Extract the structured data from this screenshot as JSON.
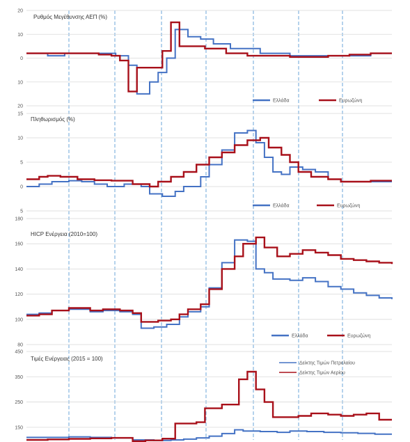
{
  "colors": {
    "greece": "#4472c4",
    "eurozone": "#a8101a",
    "grid": "#d9d9d9",
    "divider": "#5b9bd5"
  },
  "chart_data": [
    {
      "type": "line",
      "title": "Ρυθμός Μεγέθυνσης ΑΕΠ (%)",
      "ylim": [
        -20,
        20
      ],
      "y_ticks": [
        20,
        10,
        0,
        -10,
        -20
      ],
      "y_tick_labels": [
        "20",
        "10",
        "0",
        "10",
        "20"
      ],
      "grid": true,
      "legend": "bottom-right",
      "series": [
        {
          "name": "Ελλάδα",
          "color": "#4472c4",
          "step": true,
          "x": [
            0,
            5,
            9,
            15,
            21,
            24,
            26,
            29,
            31,
            33,
            35,
            38,
            41,
            44,
            48,
            55,
            62,
            67,
            71,
            76,
            81,
            86
          ],
          "values": [
            2,
            1,
            2,
            2,
            1,
            -3,
            -15,
            -10,
            -6,
            0,
            12,
            9,
            8,
            6,
            4,
            2,
            1,
            1,
            1,
            1,
            2,
            2
          ]
        },
        {
          "name": "Ευρωζώνη",
          "color": "#a8101a",
          "step": true,
          "x": [
            0,
            5,
            10,
            17,
            20,
            22,
            24,
            26,
            29,
            32,
            34,
            36,
            39,
            42,
            47,
            52,
            57,
            62,
            67,
            71,
            76,
            81,
            86
          ],
          "values": [
            2,
            2,
            2,
            1.5,
            1,
            -1,
            -14,
            -4,
            -4,
            3,
            15,
            5,
            5,
            4,
            2,
            1,
            1,
            0.5,
            0.5,
            1,
            1.5,
            2,
            2
          ]
        }
      ]
    },
    {
      "type": "line",
      "title": "Πληθωρισμός  (%)",
      "ylim": [
        -5,
        15
      ],
      "y_ticks": [
        15,
        10,
        5,
        0,
        -5
      ],
      "y_tick_labels": [
        "15",
        "10",
        "5",
        "0",
        "5"
      ],
      "grid": true,
      "legend": "bottom-right",
      "series": [
        {
          "name": "Ελλάδα",
          "color": "#4472c4",
          "step": true,
          "x": [
            0,
            3,
            6,
            10,
            13,
            16,
            19,
            23,
            27,
            29,
            32,
            35,
            37,
            41,
            43,
            46,
            49,
            52,
            54,
            56,
            58,
            60,
            62,
            65,
            68,
            71,
            74,
            77,
            81,
            86
          ],
          "values": [
            0,
            0.5,
            1,
            1.2,
            1,
            0.5,
            0,
            0.5,
            0,
            -1.5,
            -2,
            -1,
            0,
            2,
            4.5,
            7.5,
            11,
            11.5,
            9,
            6,
            3,
            2.5,
            4,
            3.5,
            3,
            1.5,
            1,
            1,
            1,
            1
          ]
        },
        {
          "name": "Ευρωζώνη",
          "color": "#a8101a",
          "step": true,
          "x": [
            0,
            3,
            5,
            8,
            12,
            16,
            20,
            25,
            29,
            31,
            34,
            37,
            40,
            43,
            46,
            49,
            52,
            55,
            57,
            60,
            62,
            64,
            67,
            71,
            74,
            77,
            81,
            86
          ],
          "values": [
            1.5,
            2,
            2.2,
            2,
            1.5,
            1.3,
            1.2,
            0.5,
            0,
            1,
            2,
            3,
            4.5,
            6,
            7,
            8.5,
            9.5,
            10,
            8,
            6.5,
            5,
            3,
            2,
            1.5,
            1,
            1,
            1.2,
            1.2
          ]
        }
      ]
    },
    {
      "type": "line",
      "title": "HICP Ενέργεια  (2010=100)",
      "ylim": [
        80,
        180
      ],
      "y_ticks": [
        180,
        160,
        140,
        120,
        100,
        80
      ],
      "y_tick_labels": [
        "180",
        "160",
        "140",
        "120",
        "100",
        "80"
      ],
      "grid": true,
      "legend": "bottom-right",
      "series": [
        {
          "name": "Ελλάδα",
          "color": "#4472c4",
          "step": true,
          "x": [
            0,
            3,
            6,
            10,
            15,
            18,
            22,
            25,
            27,
            30,
            33,
            36,
            38,
            41,
            43,
            46,
            49,
            52,
            54,
            56,
            58,
            62,
            65,
            68,
            71,
            74,
            77,
            80,
            83,
            86
          ],
          "values": [
            104,
            105,
            107,
            108,
            106,
            107,
            106,
            104,
            93,
            94,
            96,
            102,
            106,
            110,
            125,
            145,
            163,
            162,
            140,
            137,
            132,
            131,
            133,
            130,
            126,
            124,
            121,
            119,
            117,
            116
          ]
        },
        {
          "name": "Ευρωζώνη",
          "color": "#a8101a",
          "step": true,
          "x": [
            0,
            3,
            6,
            10,
            15,
            18,
            22,
            25,
            27,
            31,
            34,
            36,
            38,
            41,
            43,
            46,
            49,
            51,
            54,
            56,
            59,
            62,
            65,
            68,
            71,
            74,
            77,
            80,
            83,
            86
          ],
          "values": [
            103,
            104,
            107,
            109,
            107,
            108,
            107,
            105,
            98,
            99,
            100,
            104,
            108,
            112,
            124,
            140,
            150,
            160,
            165,
            157,
            150,
            152,
            155,
            153,
            151,
            148,
            147,
            146,
            145,
            144
          ]
        }
      ]
    },
    {
      "type": "line",
      "title": "Τιμές Ενέργειας (2015 = 100)",
      "ylim": [
        100,
        450
      ],
      "y_ticks": [
        450,
        350,
        250,
        150
      ],
      "y_tick_labels": [
        "450",
        "350",
        "250",
        "150"
      ],
      "grid": true,
      "legend": "top-right",
      "series": [
        {
          "name": "Δείκτης Τιμών Πετρελαίου",
          "color": "#4472c4",
          "step": true,
          "x": [
            0,
            5,
            10,
            15,
            20,
            25,
            30,
            34,
            37,
            40,
            43,
            46,
            49,
            51,
            55,
            59,
            62,
            66,
            70,
            74,
            78,
            82,
            86
          ],
          "values": [
            110,
            110,
            112,
            110,
            108,
            100,
            98,
            100,
            103,
            108,
            115,
            125,
            140,
            135,
            133,
            130,
            135,
            133,
            130,
            128,
            126,
            123,
            123
          ]
        },
        {
          "name": "Δείκτης Τιμών Αερίου",
          "color": "#a8101a",
          "step": true,
          "x": [
            0,
            5,
            10,
            15,
            20,
            25,
            28,
            32,
            35,
            40,
            42,
            46,
            50,
            52,
            54,
            56,
            58,
            61,
            64,
            67,
            71,
            74,
            77,
            80,
            83,
            86
          ],
          "values": [
            100,
            102,
            104,
            106,
            108,
            95,
            98,
            105,
            165,
            170,
            225,
            240,
            340,
            370,
            300,
            250,
            190,
            190,
            195,
            205,
            200,
            195,
            200,
            205,
            180,
            180
          ]
        }
      ]
    }
  ]
}
